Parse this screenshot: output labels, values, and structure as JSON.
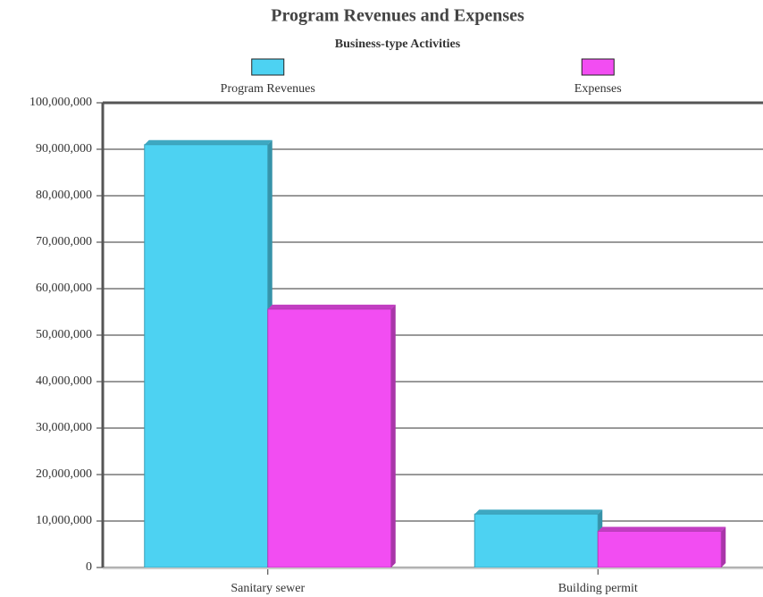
{
  "chart_data": {
    "type": "bar",
    "title": "Program Revenues and Expenses",
    "subtitle": "Business-type Activities",
    "categories": [
      "Sanitary sewer",
      "Building permit"
    ],
    "series": [
      {
        "name": "Program Revenues",
        "color": "#4dd2f2",
        "values": [
          91000000,
          11500000
        ]
      },
      {
        "name": "Expenses",
        "color": "#f24df2",
        "values": [
          55600000,
          7800000
        ]
      }
    ],
    "ylim": [
      0,
      100000000
    ],
    "yticks": [
      0,
      {
        "value": 10000000,
        "label": "10,000,000"
      },
      {
        "value": 20000000,
        "label": "20,000,000"
      },
      {
        "value": 30000000,
        "label": "30,000,000"
      },
      {
        "value": 40000000,
        "label": "40,000,000"
      },
      {
        "value": 50000000,
        "label": "50,000,000"
      },
      {
        "value": 60000000,
        "label": "60,000,000"
      },
      {
        "value": 70000000,
        "label": "70,000,000"
      },
      {
        "value": 80000000,
        "label": "80,000,000"
      },
      {
        "value": 90000000,
        "label": "90,000,000"
      },
      {
        "value": 100000000,
        "label": "100,000,000"
      }
    ],
    "grid": true
  }
}
